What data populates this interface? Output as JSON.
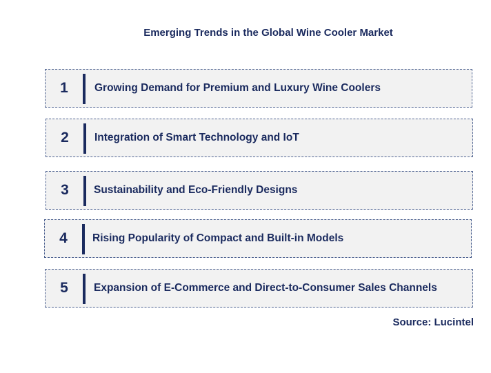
{
  "title": "Emerging Trends in the Global Wine Cooler Market",
  "trends": [
    {
      "number": "1",
      "label": "Growing Demand for Premium and Luxury Wine Coolers"
    },
    {
      "number": "2",
      "label": "Integration of Smart Technology and IoT"
    },
    {
      "number": "3",
      "label": "Sustainability and Eco-Friendly Designs"
    },
    {
      "number": "4",
      "label": "Rising Popularity of Compact and Built-in Models"
    },
    {
      "number": "5",
      "label": "Expansion of E-Commerce and Direct-to-Consumer Sales Channels"
    }
  ],
  "source": "Source: Lucintel",
  "colors": {
    "text": "#1a2a5e",
    "box_fill": "#f2f2f2",
    "box_border": "#4a5f8f"
  }
}
